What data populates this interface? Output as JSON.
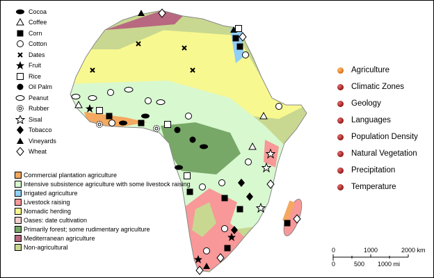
{
  "crop_legend": [
    {
      "label": "Cocoa",
      "icon": "filled-ellipse-icon"
    },
    {
      "label": "Coffee",
      "icon": "open-triangle-icon"
    },
    {
      "label": "Corn",
      "icon": "filled-square-icon"
    },
    {
      "label": "Cotton",
      "icon": "open-circle-icon"
    },
    {
      "label": "Dates",
      "icon": "x-mark-icon"
    },
    {
      "label": "Fruit",
      "icon": "filled-star-icon"
    },
    {
      "label": "Rice",
      "icon": "open-square-icon"
    },
    {
      "label": "Oil Palm",
      "icon": "filled-circle-icon"
    },
    {
      "label": "Peanut",
      "icon": "open-ellipse-icon"
    },
    {
      "label": "Rubber",
      "icon": "dotted-circle-icon"
    },
    {
      "label": "Sisal",
      "icon": "open-star-icon"
    },
    {
      "label": "Tobacco",
      "icon": "filled-diamond-icon"
    },
    {
      "label": "Vineyards",
      "icon": "filled-triangle-icon"
    },
    {
      "label": "Wheat",
      "icon": "open-diamond-icon"
    }
  ],
  "region_legend": [
    {
      "label": "Commercial plantation agriculture",
      "color": "#f4a860"
    },
    {
      "label": "Intensive subsistence agriculture with some livestock raising",
      "color": "#d8f8d0"
    },
    {
      "label": "Irrigated agriculture",
      "color": "#90d0f8"
    },
    {
      "label": "Livestock raising",
      "color": "#f89898"
    },
    {
      "label": "Nomadic herding",
      "color": "#f8f890"
    },
    {
      "label": "Oases: date cultivation",
      "color": "#f8d0d0"
    },
    {
      "label": "Primarily forest; some rudimentary agriculture",
      "color": "#78a868"
    },
    {
      "label": "Mediterranean agriculture",
      "color": "#b86880"
    },
    {
      "label": "Non-agricultural",
      "color": "#c8d890"
    }
  ],
  "menu": [
    {
      "label": "Agriculture",
      "active": true
    },
    {
      "label": "Climatic Zones"
    },
    {
      "label": "Geology"
    },
    {
      "label": "Languages"
    },
    {
      "label": "Population Density"
    },
    {
      "label": "Natural Vegetation"
    },
    {
      "label": "Precipitation"
    },
    {
      "label": "Temperature"
    }
  ],
  "scale": {
    "km_ticks": [
      "0",
      "1000",
      "2000 km"
    ],
    "mi_ticks": [
      "0",
      "500",
      "1000 mi"
    ]
  }
}
